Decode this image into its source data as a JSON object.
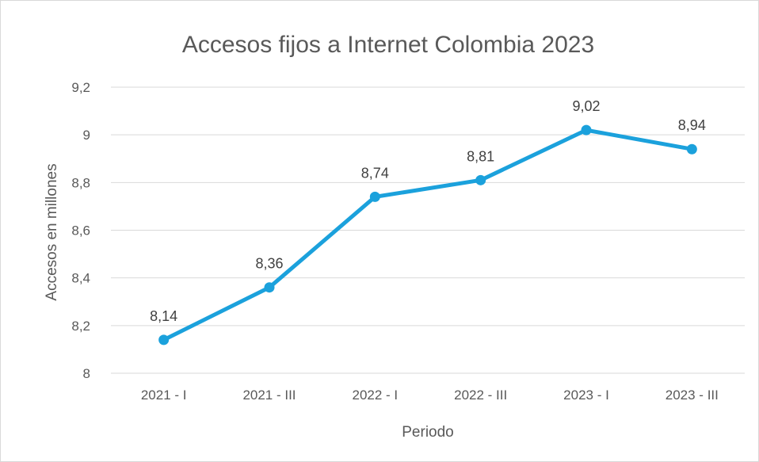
{
  "chart_data": {
    "type": "line",
    "title": "Accesos fijos a Internet Colombia 2023",
    "xlabel": "Periodo",
    "ylabel": "Accesos en millones",
    "categories": [
      "2021 - I",
      "2021 - III",
      "2022 - I",
      "2022 - III",
      "2023 - I",
      "2023 - III"
    ],
    "values": [
      8.14,
      8.36,
      8.74,
      8.81,
      9.02,
      8.94
    ],
    "data_labels": [
      "8,14",
      "8,36",
      "8,74",
      "8,81",
      "9,02",
      "8,94"
    ],
    "ylim": [
      8,
      9.2
    ],
    "yticks": [
      8,
      8.2,
      8.4,
      8.6,
      8.8,
      9,
      9.2
    ],
    "ytick_labels": [
      "8",
      "8,2",
      "8,4",
      "8,6",
      "8,8",
      "9",
      "9,2"
    ],
    "grid": true,
    "legend": "none",
    "colors": {
      "line": "#1ba1dc",
      "grid": "#d9d9d9",
      "text": "#595959"
    }
  }
}
